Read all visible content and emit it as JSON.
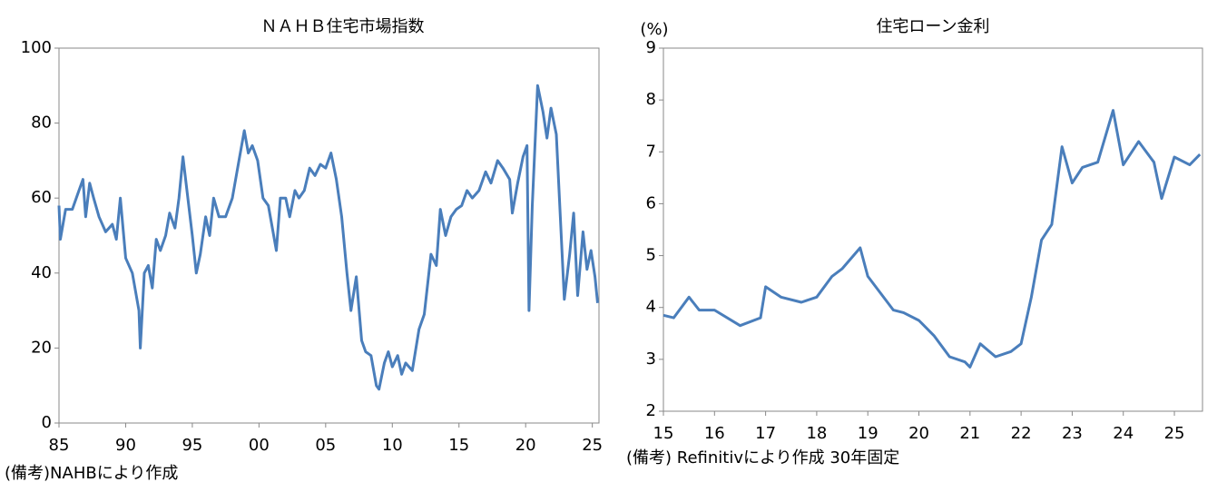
{
  "chart_data": [
    {
      "type": "line",
      "title": "ＮＡＨＢ住宅市場指数",
      "note": "(備考)NAHBにより作成",
      "x": [
        1985.0,
        1985.1,
        1985.5,
        1986.0,
        1986.5,
        1986.8,
        1987.0,
        1987.3,
        1987.6,
        1988.0,
        1988.5,
        1989.0,
        1989.3,
        1989.6,
        1990.0,
        1990.5,
        1991.0,
        1991.1,
        1991.4,
        1991.7,
        1992.0,
        1992.3,
        1992.6,
        1993.0,
        1993.3,
        1993.7,
        1994.0,
        1994.3,
        1994.6,
        1995.0,
        1995.3,
        1995.6,
        1996.0,
        1996.3,
        1996.6,
        1997.0,
        1997.5,
        1998.0,
        1998.5,
        1998.9,
        1999.2,
        1999.5,
        1999.9,
        2000.3,
        2000.7,
        2001.0,
        2001.3,
        2001.6,
        2002.0,
        2002.3,
        2002.7,
        2003.0,
        2003.4,
        2003.8,
        2004.2,
        2004.6,
        2005.0,
        2005.4,
        2005.8,
        2006.2,
        2006.6,
        2006.9,
        2007.3,
        2007.7,
        2008.0,
        2008.4,
        2008.8,
        2009.0,
        2009.4,
        2009.7,
        2010.0,
        2010.4,
        2010.7,
        2011.0,
        2011.5,
        2012.0,
        2012.4,
        2012.9,
        2013.3,
        2013.6,
        2014.0,
        2014.4,
        2014.8,
        2015.2,
        2015.6,
        2016.0,
        2016.5,
        2017.0,
        2017.4,
        2017.9,
        2018.3,
        2018.8,
        2019.0,
        2019.4,
        2019.8,
        2020.1,
        2020.25,
        2020.5,
        2020.9,
        2021.3,
        2021.6,
        2021.9,
        2022.3,
        2022.6,
        2022.9,
        2023.3,
        2023.6,
        2023.9,
        2024.3,
        2024.6,
        2024.9,
        2025.2,
        2025.4
      ],
      "series": [
        {
          "name": "NAHB",
          "color": "#4a7ebb",
          "values": [
            58,
            49,
            57,
            57,
            62,
            65,
            55,
            64,
            60,
            55,
            51,
            53,
            49,
            60,
            44,
            40,
            30,
            20,
            40,
            42,
            36,
            49,
            46,
            50,
            56,
            52,
            60,
            71,
            62,
            50,
            40,
            45,
            55,
            50,
            60,
            55,
            55,
            60,
            70,
            78,
            72,
            74,
            70,
            60,
            58,
            52,
            46,
            60,
            60,
            55,
            62,
            60,
            62,
            68,
            66,
            69,
            68,
            72,
            65,
            55,
            40,
            30,
            39,
            22,
            19,
            18,
            10,
            9,
            16,
            19,
            15,
            18,
            13,
            16,
            14,
            25,
            29,
            45,
            42,
            57,
            50,
            55,
            57,
            58,
            62,
            60,
            62,
            67,
            64,
            70,
            68,
            65,
            56,
            64,
            71,
            74,
            30,
            58,
            90,
            83,
            76,
            84,
            77,
            55,
            33,
            45,
            56,
            34,
            51,
            41,
            46,
            39,
            32
          ]
        }
      ],
      "xlim": [
        1985,
        2025.5
      ],
      "xticks": [
        {
          "value": 1985,
          "label": "85"
        },
        {
          "value": 1990,
          "label": "90"
        },
        {
          "value": 1995,
          "label": "95"
        },
        {
          "value": 2000,
          "label": "00"
        },
        {
          "value": 2005,
          "label": "05"
        },
        {
          "value": 2010,
          "label": "10"
        },
        {
          "value": 2015,
          "label": "15"
        },
        {
          "value": 2020,
          "label": "20"
        },
        {
          "value": 2025,
          "label": "25"
        }
      ],
      "ylim": [
        0,
        100
      ],
      "yticks": [
        0,
        20,
        40,
        60,
        80,
        100
      ]
    },
    {
      "type": "line",
      "title": "住宅ローン金利",
      "y_label": "(%)",
      "note": "(備考) Refinitivにより作成 30年固定",
      "x": [
        2015.0,
        2015.2,
        2015.5,
        2015.7,
        2016.0,
        2016.5,
        2016.9,
        2017.0,
        2017.3,
        2017.7,
        2018.0,
        2018.3,
        2018.5,
        2018.85,
        2019.0,
        2019.5,
        2019.7,
        2020.0,
        2020.3,
        2020.6,
        2020.9,
        2021.0,
        2021.2,
        2021.5,
        2021.8,
        2022.0,
        2022.2,
        2022.4,
        2022.6,
        2022.8,
        2023.0,
        2023.2,
        2023.5,
        2023.8,
        2024.0,
        2024.3,
        2024.6,
        2024.75,
        2025.0,
        2025.3,
        2025.5
      ],
      "series": [
        {
          "name": "30年固定",
          "color": "#4a7ebb",
          "values": [
            3.85,
            3.8,
            4.2,
            3.95,
            3.95,
            3.65,
            3.8,
            4.4,
            4.2,
            4.1,
            4.2,
            4.6,
            4.75,
            5.15,
            4.6,
            3.95,
            3.9,
            3.75,
            3.45,
            3.05,
            2.95,
            2.85,
            3.3,
            3.05,
            3.15,
            3.3,
            4.2,
            5.3,
            5.6,
            7.1,
            6.4,
            6.7,
            6.8,
            7.8,
            6.75,
            7.2,
            6.8,
            6.1,
            6.9,
            6.75,
            6.95
          ]
        }
      ],
      "xlim": [
        2015,
        2025.55
      ],
      "xticks": [
        {
          "value": 2015,
          "label": "15"
        },
        {
          "value": 2016,
          "label": "16"
        },
        {
          "value": 2017,
          "label": "17"
        },
        {
          "value": 2018,
          "label": "18"
        },
        {
          "value": 2019,
          "label": "19"
        },
        {
          "value": 2020,
          "label": "20"
        },
        {
          "value": 2021,
          "label": "21"
        },
        {
          "value": 2022,
          "label": "22"
        },
        {
          "value": 2023,
          "label": "23"
        },
        {
          "value": 2024,
          "label": "24"
        },
        {
          "value": 2025,
          "label": "25"
        }
      ],
      "ylim": [
        2,
        9
      ],
      "yticks": [
        2,
        3,
        4,
        5,
        6,
        7,
        8,
        9
      ]
    }
  ]
}
